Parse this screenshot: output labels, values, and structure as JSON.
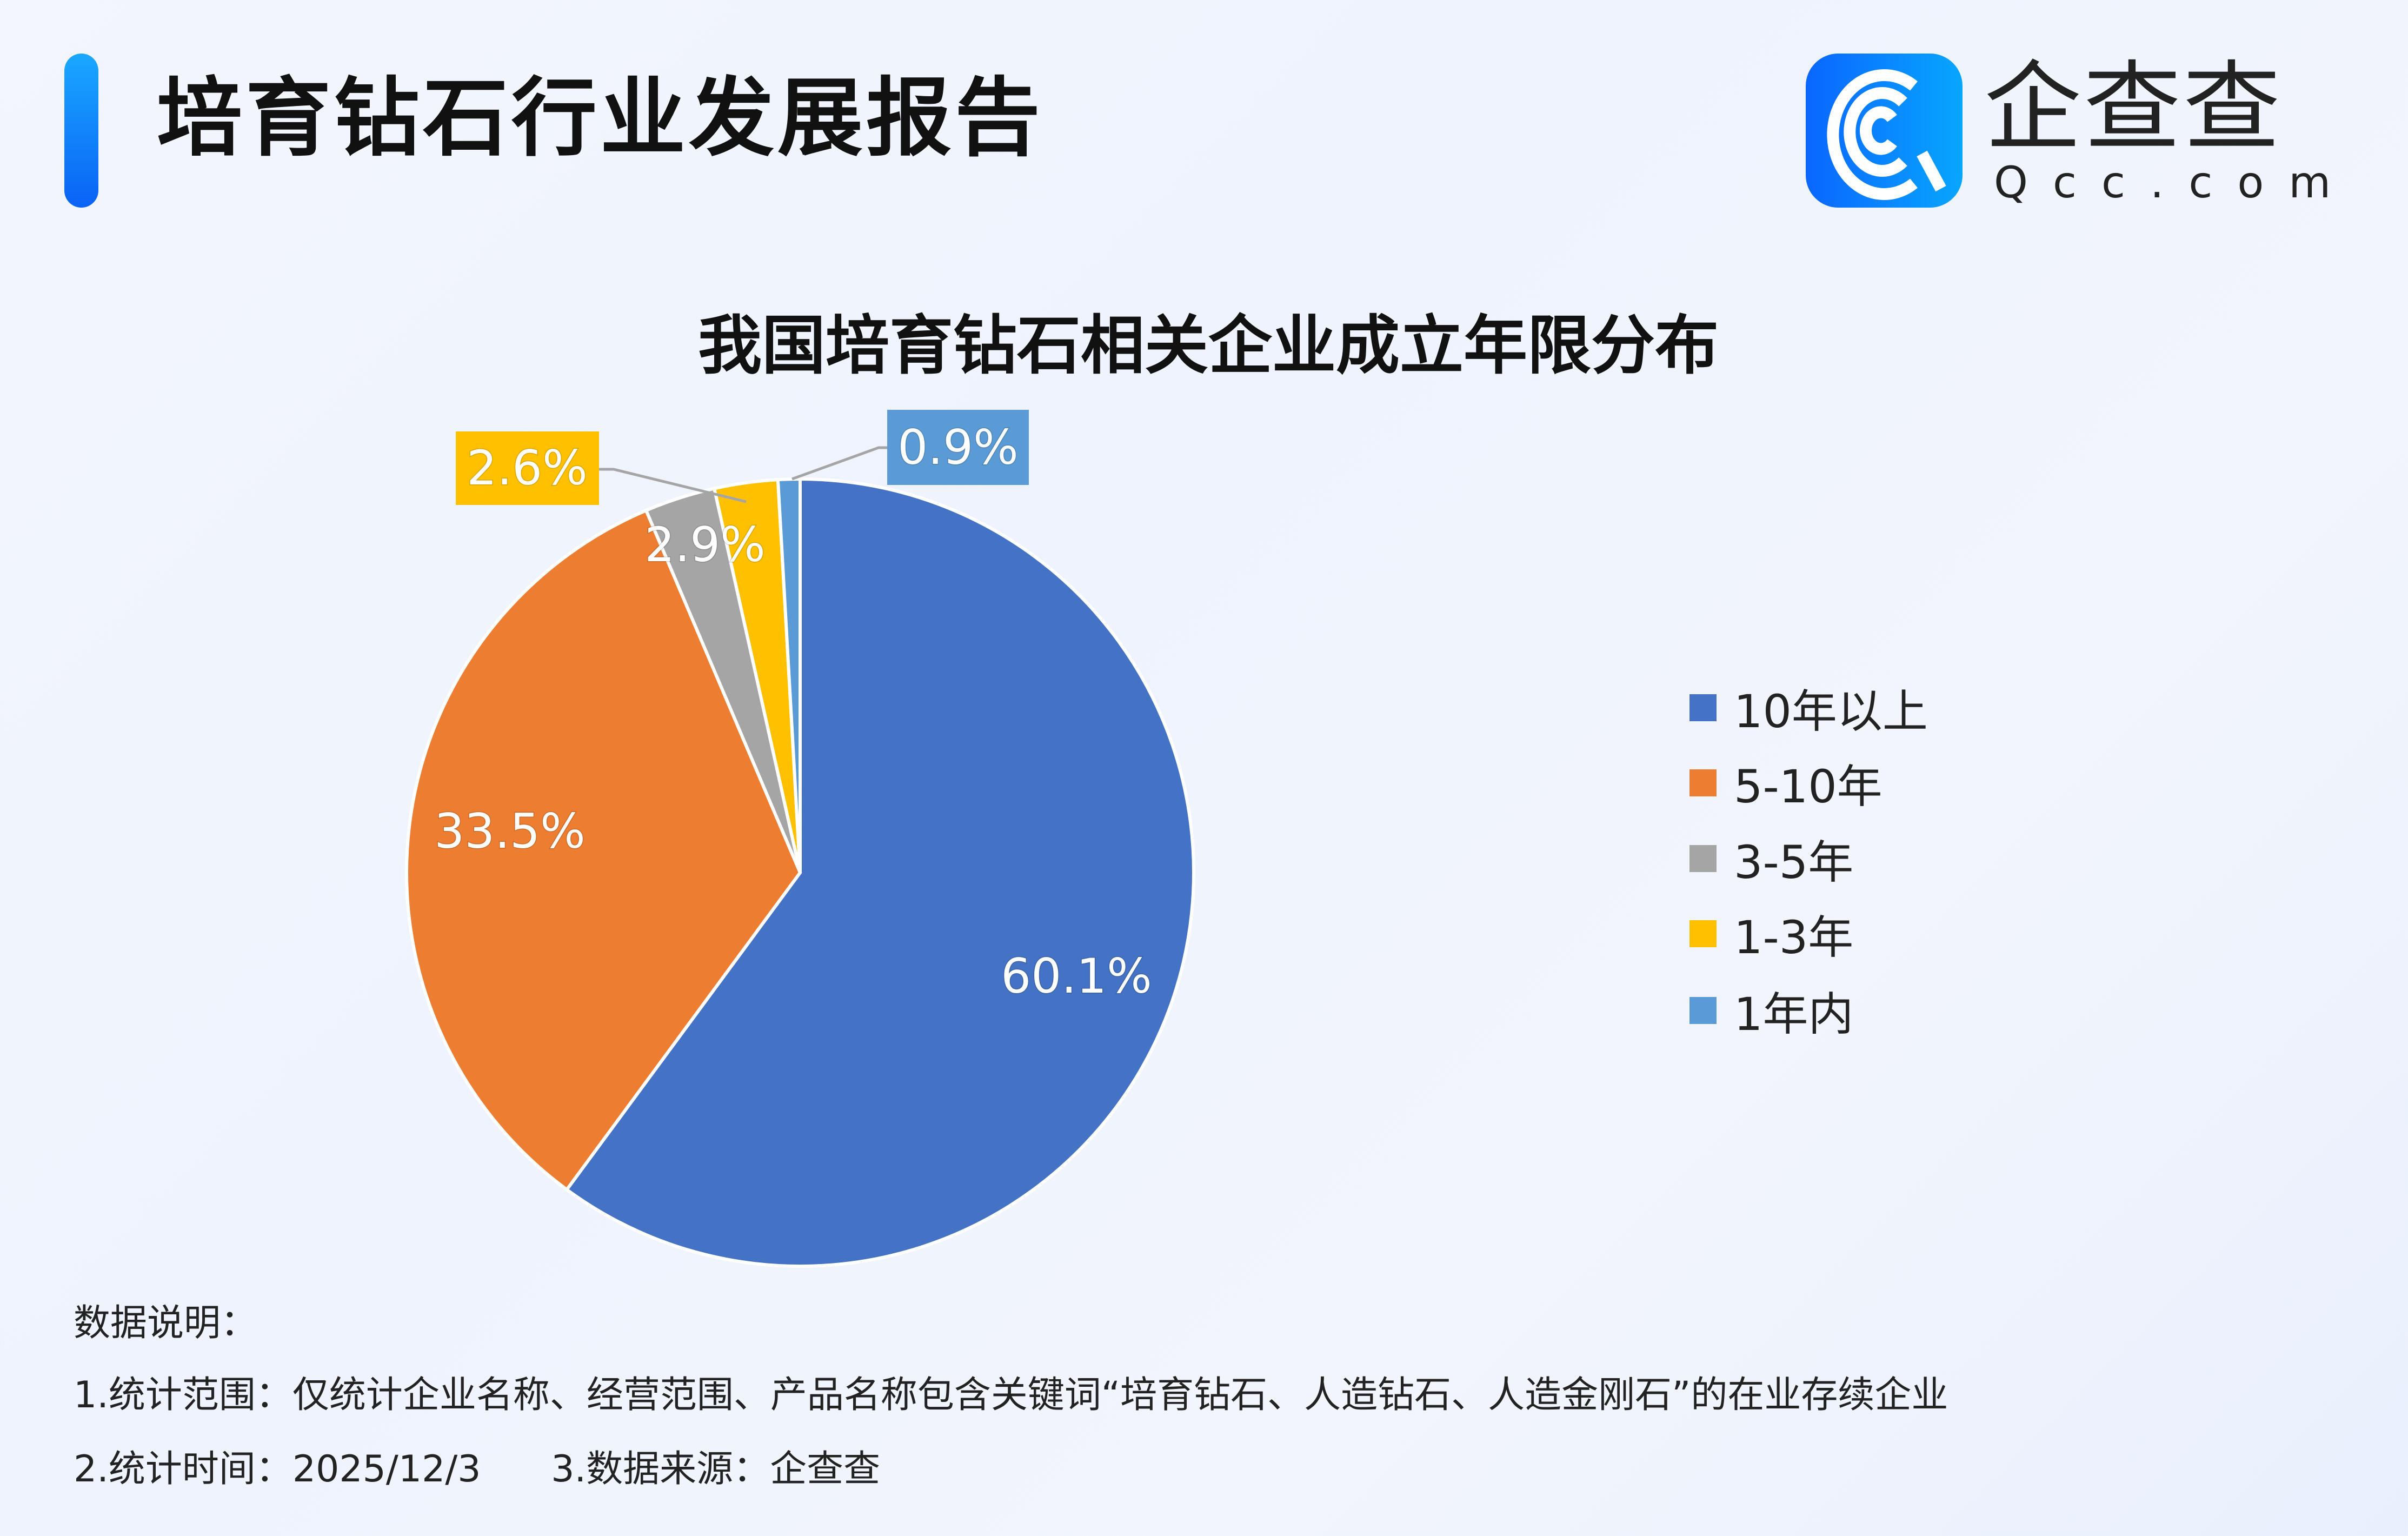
{
  "header": {
    "title": "培育钻石行业发展报告"
  },
  "logo": {
    "name": "企查查",
    "domain": "Qcc.com"
  },
  "chart_data": {
    "type": "pie",
    "title": "我国培育钻石相关企业成立年限分布",
    "categories": [
      "10年以上",
      "5-10年",
      "3-5年",
      "1-3年",
      "1年内"
    ],
    "values": [
      60.1,
      33.5,
      2.9,
      2.6,
      0.9
    ],
    "labels": [
      "60.1%",
      "33.5%",
      "2.9%",
      "2.6%",
      "0.9%"
    ],
    "colors": [
      "#4472c4",
      "#ed7d31",
      "#a5a5a5",
      "#ffc000",
      "#5b9bd5"
    ],
    "start_angle": "12 o'clock, clockwise",
    "legend_position": "right"
  },
  "notes": {
    "heading": "数据说明：",
    "line1": "1.统计范围：仅统计企业名称、经营范围、产品名称包含关键词“培育钻石、人造钻石、人造金刚石”的在业存续企业",
    "line2": "2.统计时间：2025/12/3      3.数据来源：企查查"
  }
}
